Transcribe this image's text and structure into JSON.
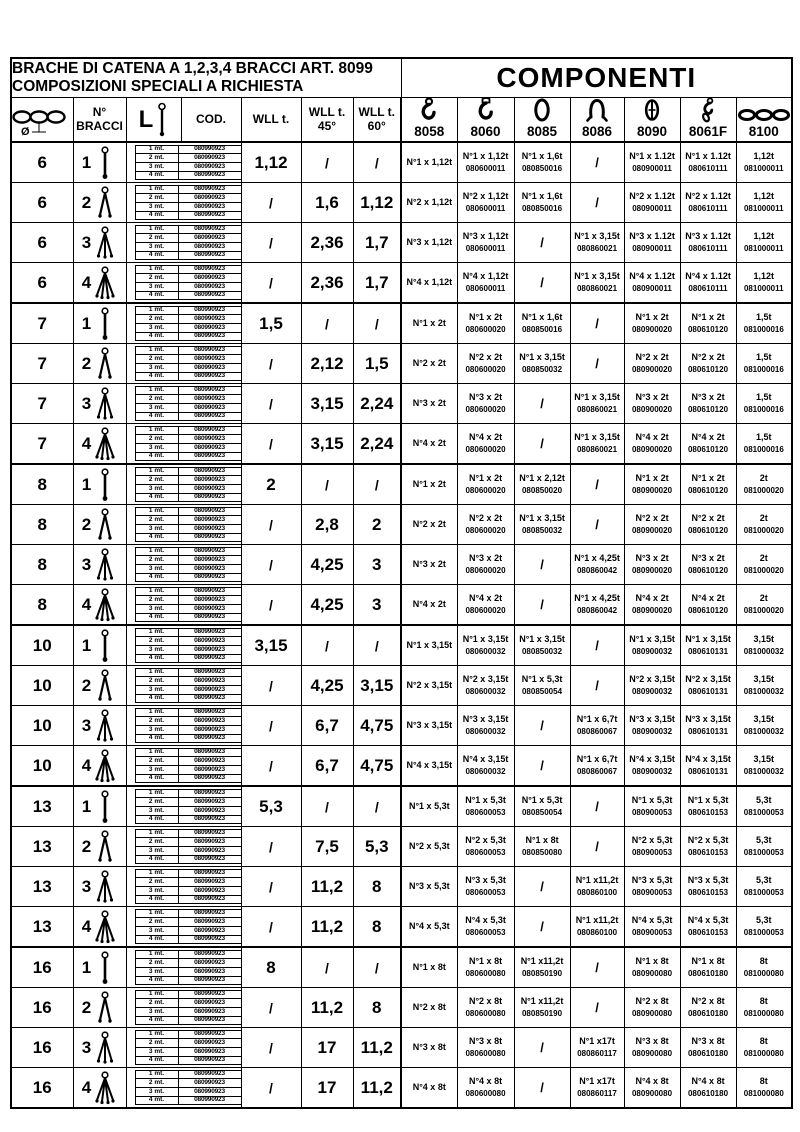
{
  "header": {
    "title_line1": "BRACHE DI CATENA A 1,2,3,4 BRACCI ART. 8099",
    "title_line2": "COMPOSIZIONI SPECIALI A RICHIESTA",
    "componenti_label": "COMPONENTI"
  },
  "columns": {
    "diameter_symbol": "Ø",
    "diameter_icon": "chain-diameter-icon",
    "bracci_line1": "N°",
    "bracci_line2": "BRACCI",
    "length_label": "L",
    "length_icon": "length-gauge-icon",
    "cod_label": "COD.",
    "wll_label": "WLL t.",
    "wll45_line1": "WLL t.",
    "wll45_line2": "45°",
    "wll60_line1": "WLL t.",
    "wll60_line2": "60°"
  },
  "component_columns": [
    {
      "code": "8058",
      "icon": "eye-hook-icon"
    },
    {
      "code": "8060",
      "icon": "clevis-hook-icon"
    },
    {
      "code": "8085",
      "icon": "oval-link-icon"
    },
    {
      "code": "8086",
      "icon": "master-link-icon"
    },
    {
      "code": "8090",
      "icon": "connecting-link-icon"
    },
    {
      "code": "8061F",
      "icon": "shortening-hook-icon"
    },
    {
      "code": "8100",
      "icon": "chain-icon"
    }
  ],
  "length_rows": [
    {
      "len": "1 mt.",
      "cod": "080990923"
    },
    {
      "len": "2 mt.",
      "cod": "080990923"
    },
    {
      "len": "3 mt.",
      "cod": "080990923"
    },
    {
      "len": "4 mt.",
      "cod": "080990923"
    }
  ],
  "rows": [
    {
      "diameter": "6",
      "bracci": "1",
      "wll": "1,12",
      "wll45": "/",
      "wll60": "/",
      "components": [
        [
          "N°1 x 1,12t"
        ],
        [
          "N°1 x 1,12t",
          "080600011"
        ],
        [
          "N°1 x 1,6t",
          "080850016"
        ],
        [
          "/"
        ],
        [
          "N°1 x 1.12t",
          "080900011"
        ],
        [
          "N°1 x 1.12t",
          "080610111"
        ],
        [
          "1,12t",
          "081000011"
        ]
      ]
    },
    {
      "diameter": "6",
      "bracci": "2",
      "wll": "/",
      "wll45": "1,6",
      "wll60": "1,12",
      "components": [
        [
          "N°2 x 1,12t"
        ],
        [
          "N°2 x 1,12t",
          "080600011"
        ],
        [
          "N°1 x 1,6t",
          "080850016"
        ],
        [
          "/"
        ],
        [
          "N°2 x 1.12t",
          "080900011"
        ],
        [
          "N°2 x 1.12t",
          "080610111"
        ],
        [
          "1,12t",
          "081000011"
        ]
      ]
    },
    {
      "diameter": "6",
      "bracci": "3",
      "wll": "/",
      "wll45": "2,36",
      "wll60": "1,7",
      "components": [
        [
          "N°3 x 1,12t"
        ],
        [
          "N°3 x 1,12t",
          "080600011"
        ],
        [
          "/"
        ],
        [
          "N°1 x 3,15t",
          "080860021"
        ],
        [
          "N°3 x 1.12t",
          "080900011"
        ],
        [
          "N°3 x 1.12t",
          "080610111"
        ],
        [
          "1,12t",
          "081000011"
        ]
      ]
    },
    {
      "diameter": "6",
      "bracci": "4",
      "wll": "/",
      "wll45": "2,36",
      "wll60": "1,7",
      "components": [
        [
          "N°4 x 1,12t"
        ],
        [
          "N°4 x 1,12t",
          "080600011"
        ],
        [
          "/"
        ],
        [
          "N°1 x 3,15t",
          "080860021"
        ],
        [
          "N°4 x 1.12t",
          "080900011"
        ],
        [
          "N°4 x 1.12t",
          "080610111"
        ],
        [
          "1,12t",
          "081000011"
        ]
      ]
    },
    {
      "diameter": "7",
      "bracci": "1",
      "wll": "1,5",
      "wll45": "/",
      "wll60": "/",
      "components": [
        [
          "N°1 x 2t"
        ],
        [
          "N°1 x 2t",
          "080600020"
        ],
        [
          "N°1 x 1,6t",
          "080850016"
        ],
        [
          "/"
        ],
        [
          "N°1 x 2t",
          "080900020"
        ],
        [
          "N°1 x 2t",
          "080610120"
        ],
        [
          "1,5t",
          "081000016"
        ]
      ]
    },
    {
      "diameter": "7",
      "bracci": "2",
      "wll": "/",
      "wll45": "2,12",
      "wll60": "1,5",
      "components": [
        [
          "N°2 x 2t"
        ],
        [
          "N°2 x 2t",
          "080600020"
        ],
        [
          "N°1 x 3,15t",
          "080850032"
        ],
        [
          "/"
        ],
        [
          "N°2 x 2t",
          "080900020"
        ],
        [
          "N°2 x 2t",
          "080610120"
        ],
        [
          "1,5t",
          "081000016"
        ]
      ]
    },
    {
      "diameter": "7",
      "bracci": "3",
      "wll": "/",
      "wll45": "3,15",
      "wll60": "2,24",
      "components": [
        [
          "N°3 x 2t"
        ],
        [
          "N°3 x 2t",
          "080600020"
        ],
        [
          "/"
        ],
        [
          "N°1 x 3,15t",
          "080860021"
        ],
        [
          "N°3 x 2t",
          "080900020"
        ],
        [
          "N°3 x 2t",
          "080610120"
        ],
        [
          "1,5t",
          "081000016"
        ]
      ]
    },
    {
      "diameter": "7",
      "bracci": "4",
      "wll": "/",
      "wll45": "3,15",
      "wll60": "2,24",
      "components": [
        [
          "N°4 x 2t"
        ],
        [
          "N°4 x 2t",
          "080600020"
        ],
        [
          "/"
        ],
        [
          "N°1 x 3,15t",
          "080860021"
        ],
        [
          "N°4 x 2t",
          "080900020"
        ],
        [
          "N°4 x 2t",
          "080610120"
        ],
        [
          "1,5t",
          "081000016"
        ]
      ]
    },
    {
      "diameter": "8",
      "bracci": "1",
      "wll": "2",
      "wll45": "/",
      "wll60": "/",
      "components": [
        [
          "N°1 x 2t"
        ],
        [
          "N°1 x 2t",
          "080600020"
        ],
        [
          "N°1 x 2,12t",
          "080850020"
        ],
        [
          "/"
        ],
        [
          "N°1 x 2t",
          "080900020"
        ],
        [
          "N°1 x 2t",
          "080610120"
        ],
        [
          "2t",
          "081000020"
        ]
      ]
    },
    {
      "diameter": "8",
      "bracci": "2",
      "wll": "/",
      "wll45": "2,8",
      "wll60": "2",
      "components": [
        [
          "N°2 x 2t"
        ],
        [
          "N°2 x 2t",
          "080600020"
        ],
        [
          "N°1 x 3,15t",
          "080850032"
        ],
        [
          "/"
        ],
        [
          "N°2 x 2t",
          "080900020"
        ],
        [
          "N°2 x 2t",
          "080610120"
        ],
        [
          "2t",
          "081000020"
        ]
      ]
    },
    {
      "diameter": "8",
      "bracci": "3",
      "wll": "/",
      "wll45": "4,25",
      "wll60": "3",
      "components": [
        [
          "N°3 x 2t"
        ],
        [
          "N°3 x 2t",
          "080600020"
        ],
        [
          "/"
        ],
        [
          "N°1 x 4,25t",
          "080860042"
        ],
        [
          "N°3 x 2t",
          "080900020"
        ],
        [
          "N°3 x 2t",
          "080610120"
        ],
        [
          "2t",
          "081000020"
        ]
      ]
    },
    {
      "diameter": "8",
      "bracci": "4",
      "wll": "/",
      "wll45": "4,25",
      "wll60": "3",
      "components": [
        [
          "N°4 x 2t"
        ],
        [
          "N°4 x 2t",
          "080600020"
        ],
        [
          "/"
        ],
        [
          "N°1 x 4,25t",
          "080860042"
        ],
        [
          "N°4 x 2t",
          "080900020"
        ],
        [
          "N°4 x 2t",
          "080610120"
        ],
        [
          "2t",
          "081000020"
        ]
      ]
    },
    {
      "diameter": "10",
      "bracci": "1",
      "wll": "3,15",
      "wll45": "/",
      "wll60": "/",
      "components": [
        [
          "N°1 x 3,15t"
        ],
        [
          "N°1 x 3,15t",
          "080600032"
        ],
        [
          "N°1 x 3,15t",
          "080850032"
        ],
        [
          "/"
        ],
        [
          "N°1 x 3,15t",
          "080900032"
        ],
        [
          "N°1 x 3,15t",
          "080610131"
        ],
        [
          "3,15t",
          "081000032"
        ]
      ]
    },
    {
      "diameter": "10",
      "bracci": "2",
      "wll": "/",
      "wll45": "4,25",
      "wll60": "3,15",
      "components": [
        [
          "N°2 x 3,15t"
        ],
        [
          "N°2 x 3,15t",
          "080600032"
        ],
        [
          "N°1 x 5,3t",
          "080850054"
        ],
        [
          "/"
        ],
        [
          "N°2 x 3,15t",
          "080900032"
        ],
        [
          "N°2 x 3,15t",
          "080610131"
        ],
        [
          "3,15t",
          "081000032"
        ]
      ]
    },
    {
      "diameter": "10",
      "bracci": "3",
      "wll": "/",
      "wll45": "6,7",
      "wll60": "4,75",
      "components": [
        [
          "N°3 x 3,15t"
        ],
        [
          "N°3 x 3,15t",
          "080600032"
        ],
        [
          "/"
        ],
        [
          "N°1 x 6,7t",
          "080860067"
        ],
        [
          "N°3 x 3,15t",
          "080900032"
        ],
        [
          "N°3 x 3,15t",
          "080610131"
        ],
        [
          "3,15t",
          "081000032"
        ]
      ]
    },
    {
      "diameter": "10",
      "bracci": "4",
      "wll": "/",
      "wll45": "6,7",
      "wll60": "4,75",
      "components": [
        [
          "N°4 x 3,15t"
        ],
        [
          "N°4 x 3,15t",
          "080600032"
        ],
        [
          "/"
        ],
        [
          "N°1 x 6,7t",
          "080860067"
        ],
        [
          "N°4 x 3,15t",
          "080900032"
        ],
        [
          "N°4 x 3,15t",
          "080610131"
        ],
        [
          "3,15t",
          "081000032"
        ]
      ]
    },
    {
      "diameter": "13",
      "bracci": "1",
      "wll": "5,3",
      "wll45": "/",
      "wll60": "/",
      "components": [
        [
          "N°1 x 5,3t"
        ],
        [
          "N°1 x 5,3t",
          "080600053"
        ],
        [
          "N°1 x 5,3t",
          "080850054"
        ],
        [
          "/"
        ],
        [
          "N°1 x 5,3t",
          "080900053"
        ],
        [
          "N°1 x 5,3t",
          "080610153"
        ],
        [
          "5,3t",
          "081000053"
        ]
      ]
    },
    {
      "diameter": "13",
      "bracci": "2",
      "wll": "/",
      "wll45": "7,5",
      "wll60": "5,3",
      "components": [
        [
          "N°2 x 5,3t"
        ],
        [
          "N°2 x 5,3t",
          "080600053"
        ],
        [
          "N°1 x 8t",
          "080850080"
        ],
        [
          "/"
        ],
        [
          "N°2 x 5,3t",
          "080900053"
        ],
        [
          "N°2 x 5,3t",
          "080610153"
        ],
        [
          "5,3t",
          "081000053"
        ]
      ]
    },
    {
      "diameter": "13",
      "bracci": "3",
      "wll": "/",
      "wll45": "11,2",
      "wll60": "8",
      "components": [
        [
          "N°3 x 5,3t"
        ],
        [
          "N°3 x 5,3t",
          "080600053"
        ],
        [
          "/"
        ],
        [
          "N°1 x11,2t",
          "080860100"
        ],
        [
          "N°3 x 5,3t",
          "080900053"
        ],
        [
          "N°3 x 5,3t",
          "080610153"
        ],
        [
          "5,3t",
          "081000053"
        ]
      ]
    },
    {
      "diameter": "13",
      "bracci": "4",
      "wll": "/",
      "wll45": "11,2",
      "wll60": "8",
      "components": [
        [
          "N°4 x 5,3t"
        ],
        [
          "N°4 x 5,3t",
          "080600053"
        ],
        [
          "/"
        ],
        [
          "N°1 x11,2t",
          "080860100"
        ],
        [
          "N°4 x 5,3t",
          "080900053"
        ],
        [
          "N°4 x 5,3t",
          "080610153"
        ],
        [
          "5,3t",
          "081000053"
        ]
      ]
    },
    {
      "diameter": "16",
      "bracci": "1",
      "wll": "8",
      "wll45": "/",
      "wll60": "/",
      "components": [
        [
          "N°1 x 8t"
        ],
        [
          "N°1 x 8t",
          "080600080"
        ],
        [
          "N°1 x11,2t",
          "080850190"
        ],
        [
          "/"
        ],
        [
          "N°1 x 8t",
          "080900080"
        ],
        [
          "N°1 x 8t",
          "080610180"
        ],
        [
          "8t",
          "081000080"
        ]
      ]
    },
    {
      "diameter": "16",
      "bracci": "2",
      "wll": "/",
      "wll45": "11,2",
      "wll60": "8",
      "components": [
        [
          "N°2 x 8t"
        ],
        [
          "N°2 x 8t",
          "080600080"
        ],
        [
          "N°1 x11,2t",
          "080850190"
        ],
        [
          "/"
        ],
        [
          "N°2 x 8t",
          "080900080"
        ],
        [
          "N°2 x 8t",
          "080610180"
        ],
        [
          "8t",
          "081000080"
        ]
      ]
    },
    {
      "diameter": "16",
      "bracci": "3",
      "wll": "/",
      "wll45": "17",
      "wll60": "11,2",
      "components": [
        [
          "N°3 x 8t"
        ],
        [
          "N°3 x 8t",
          "080600080"
        ],
        [
          "/"
        ],
        [
          "N°1 x17t",
          "080860117"
        ],
        [
          "N°3 x 8t",
          "080900080"
        ],
        [
          "N°3 x 8t",
          "080610180"
        ],
        [
          "8t",
          "081000080"
        ]
      ]
    },
    {
      "diameter": "16",
      "bracci": "4",
      "wll": "/",
      "wll45": "17",
      "wll60": "11,2",
      "components": [
        [
          "N°4 x 8t"
        ],
        [
          "N°4 x 8t",
          "080600080"
        ],
        [
          "/"
        ],
        [
          "N°1 x17t",
          "080860117"
        ],
        [
          "N°4 x 8t",
          "080900080"
        ],
        [
          "N°4 x 8t",
          "080610180"
        ],
        [
          "8t",
          "081000080"
        ]
      ]
    }
  ]
}
